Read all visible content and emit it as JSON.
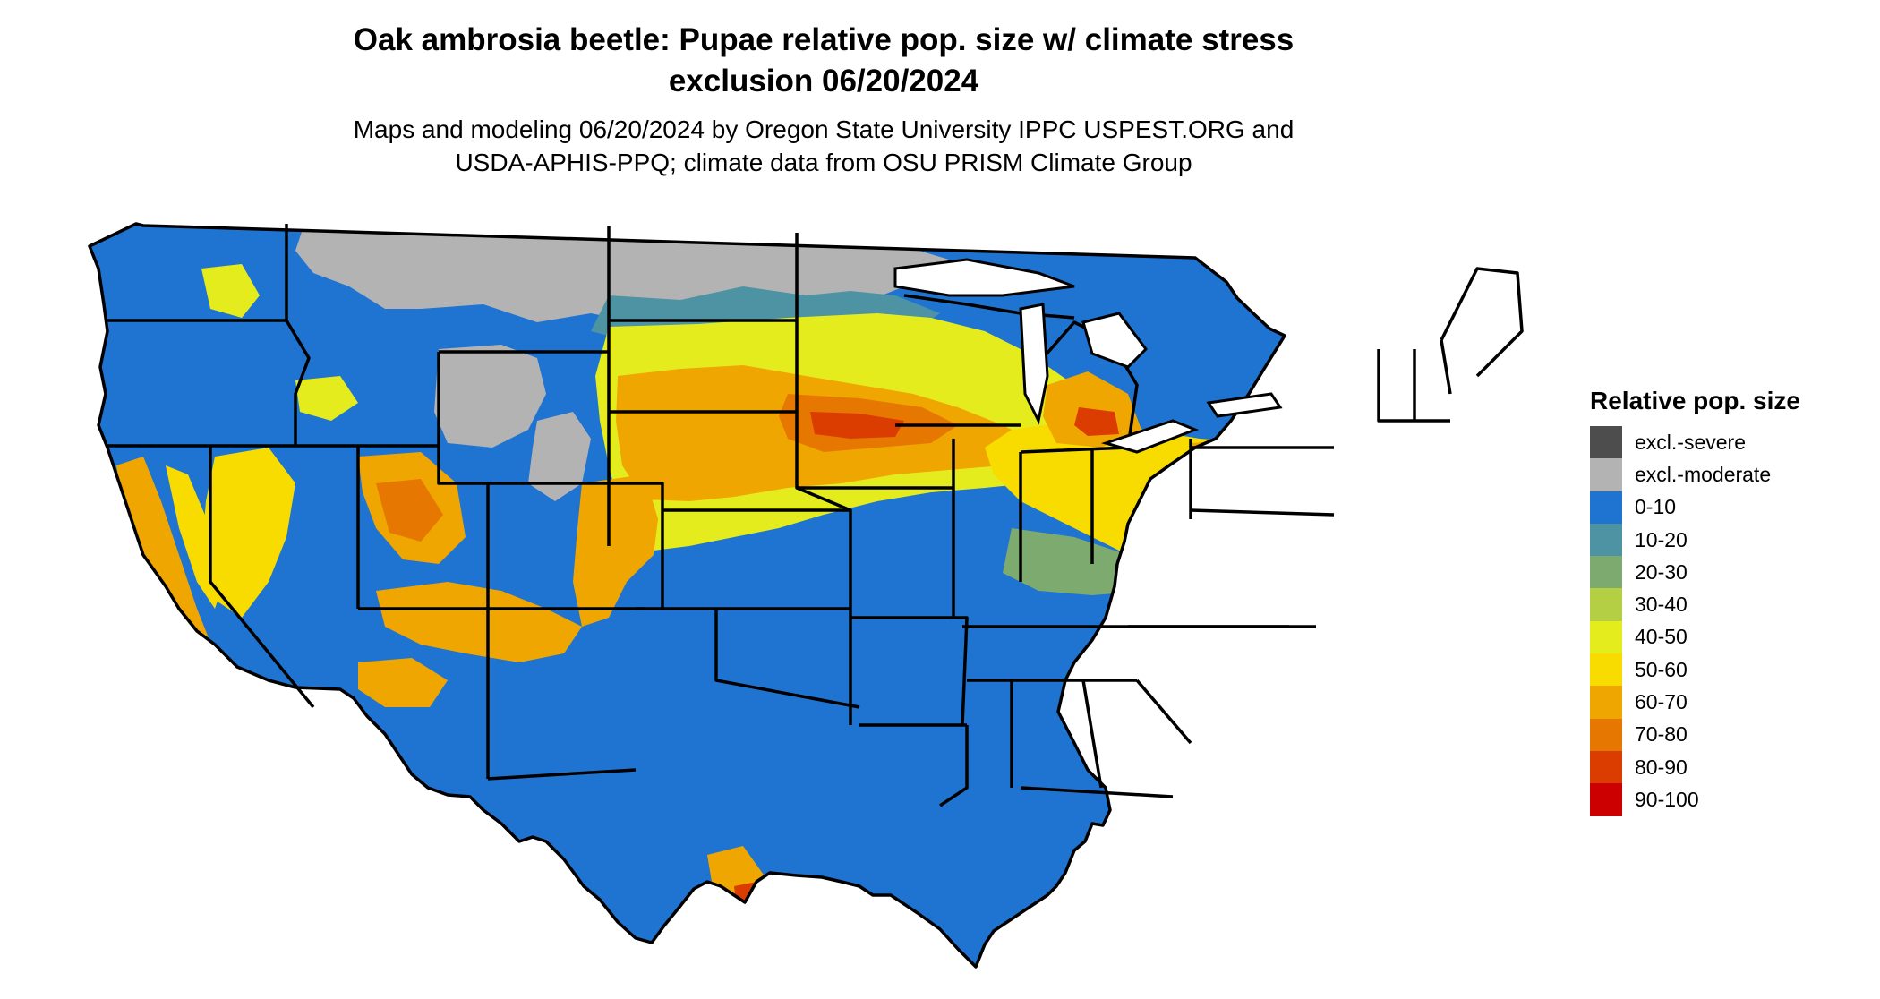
{
  "title": {
    "line1": "Oak ambrosia beetle: Pupae relative pop. size w/ climate stress",
    "line2": "exclusion 06/20/2024"
  },
  "subtitle": {
    "line1": "Maps and modeling 06/20/2024 by Oregon State University IPPC USPEST.ORG and",
    "line2": "USDA-APHIS-PPQ; climate data from OSU PRISM Climate Group"
  },
  "legend": {
    "title": "Relative pop. size",
    "items": [
      {
        "label": "excl.-severe",
        "color": "#4d4d4d"
      },
      {
        "label": "excl.-moderate",
        "color": "#b3b3b3"
      },
      {
        "label": "0-10",
        "color": "#1f74d1"
      },
      {
        "label": "10-20",
        "color": "#4e93a3"
      },
      {
        "label": "20-30",
        "color": "#7daa6e"
      },
      {
        "label": "30-40",
        "color": "#b4cf44"
      },
      {
        "label": "40-50",
        "color": "#e5ec1e"
      },
      {
        "label": "50-60",
        "color": "#f8dc00"
      },
      {
        "label": "60-70",
        "color": "#f0a600"
      },
      {
        "label": "70-80",
        "color": "#e67700"
      },
      {
        "label": "80-90",
        "color": "#db3d00"
      },
      {
        "label": "90-100",
        "color": "#cc0000"
      }
    ]
  }
}
